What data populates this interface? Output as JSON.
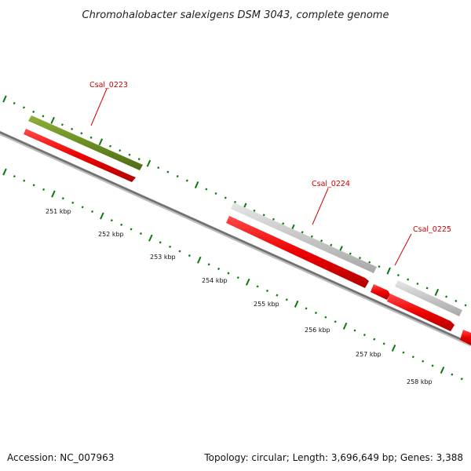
{
  "title": "Chromohalobacter salexigens DSM 3043, complete genome",
  "tick_labels": [
    "251 kbp",
    "252 kbp",
    "253 kbp",
    "254 kbp",
    "255 kbp",
    "256 kbp",
    "257 kbp",
    "258 kbp"
  ],
  "genes": [
    {
      "label": "Csal_0223",
      "color": "#6b8e23"
    },
    {
      "label": "Csal_0224",
      "color": "#c8c8c8"
    },
    {
      "label": "Csal_0225",
      "color": "#c8c8c8"
    }
  ],
  "feature_color": "#ee0000",
  "tick_color": "#0a7a0a",
  "backbone_color": "#808080",
  "footer": {
    "accession": "Accession: NC_007963",
    "topology": "Topology: circular; Length: 3,696,649 bp; Genes: 3,388"
  }
}
